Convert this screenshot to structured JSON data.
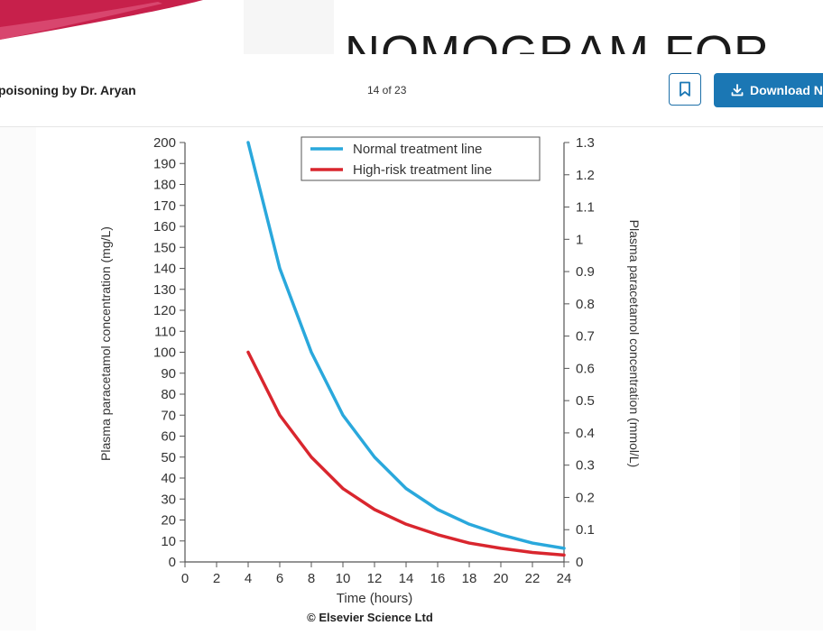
{
  "slide": {
    "title": "NOMOGRAM FOR"
  },
  "topbar": {
    "doc_title": "poisoning by Dr. Aryan",
    "page_indicator": "14 of 23",
    "download_label": "Download No"
  },
  "colors": {
    "accent": "#1b77b4",
    "normal_line": "#2aa8dc",
    "high_risk_line": "#d9262e",
    "slide_banner": "#c7204b"
  },
  "icons": {
    "bookmark": "bookmark-icon",
    "download": "download-icon"
  },
  "chart_data": {
    "type": "line",
    "title": "",
    "xlabel": "Time (hours)",
    "ylabel": "Plasma paracetamol concentration (mg/L)",
    "y2label": "Plasma paracetamol concentration (mmol/L)",
    "credit": "© Elsevier Science Ltd",
    "xlim": [
      0,
      24
    ],
    "ylim": [
      0,
      200
    ],
    "y2lim": [
      0,
      1.3
    ],
    "x_ticks": [
      "0",
      "2",
      "4",
      "6",
      "8",
      "10",
      "12",
      "14",
      "16",
      "18",
      "20",
      "22",
      "24"
    ],
    "y_ticks": [
      "0",
      "10",
      "20",
      "30",
      "40",
      "50",
      "60",
      "70",
      "80",
      "90",
      "100",
      "110",
      "120",
      "130",
      "140",
      "150",
      "160",
      "170",
      "180",
      "190",
      "200"
    ],
    "y2_ticks": [
      "0",
      "0.1",
      "0.2",
      "0.3",
      "0.4",
      "0.5",
      "0.6",
      "0.7",
      "0.8",
      "0.9",
      "1",
      "1.1",
      "1.2",
      "1.3"
    ],
    "legend_position": "top",
    "series": [
      {
        "name": "Normal treatment line",
        "color": "#2aa8dc",
        "x": [
          4,
          6,
          8,
          10,
          12,
          14,
          16,
          18,
          20,
          22,
          24
        ],
        "y": [
          200,
          140,
          100,
          70,
          50,
          35,
          25,
          18,
          13,
          9,
          6.5
        ]
      },
      {
        "name": "High-risk treatment line",
        "color": "#d9262e",
        "x": [
          4,
          6,
          8,
          10,
          12,
          14,
          16,
          18,
          20,
          22,
          24
        ],
        "y": [
          100,
          70,
          50,
          35,
          25,
          18,
          13,
          9,
          6.5,
          4.5,
          3.3
        ]
      }
    ]
  }
}
